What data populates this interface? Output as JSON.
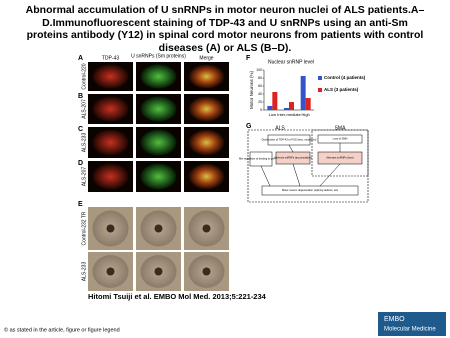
{
  "title": "Abnormal accumulation of U snRNPs in motor neuron nuclei of ALS patients.A–D.Immunofluorescent staining of TDP-43 and U snRNPs using an anti-Sm proteins antibody (Y12) in spinal cord motor neurons from patients with control diseases (A) or ALS (B–D).",
  "figure": {
    "panel_letters": [
      "A",
      "B",
      "C",
      "D",
      "E",
      "F",
      "G"
    ],
    "column_labels": [
      "TDP-43",
      "U snRNPs (Sm proteins)",
      "Merge"
    ],
    "row_labels": [
      "Control-220",
      "ALS-207",
      "ALS-233",
      "ALS-207",
      "Control-232 TR",
      "ALS-233"
    ]
  },
  "chart_data": {
    "type": "bar",
    "title": "Nuclear snRNP level",
    "y_label": "Motor Neurons (%)",
    "categories": [
      "Low",
      "Inter-mediate",
      "High"
    ],
    "series": [
      {
        "name": "Control (4 patients)",
        "color": "#3355cc",
        "values": [
          10,
          5,
          85
        ]
      },
      {
        "name": "ALS (3 patients)",
        "color": "#dd2222",
        "values": [
          45,
          20,
          30
        ]
      }
    ],
    "ylim": [
      0,
      100
    ],
    "yticks": [
      0,
      20,
      40,
      60,
      80,
      100
    ]
  },
  "diagram": {
    "groups": [
      "ALS",
      "SMA"
    ],
    "nodes": [
      "Dysfunction of TDP-43 or FUS (loss, mutations)",
      "Loss of SMN",
      "Mis-regulation of binding to pre-mRNA",
      "Aberrant snRNPs (accumulation)",
      "Aberrant snRNPs (loss)",
      "Motor neuron degeneration (splicing defects, etc)"
    ]
  },
  "citation": "Hitomi Tsuiji et al. EMBO Mol Med. 2013;5:221-234",
  "footer": "© as stated in the article, figure or figure legend",
  "logo": [
    "EMBO",
    "Molecular Medicine"
  ]
}
